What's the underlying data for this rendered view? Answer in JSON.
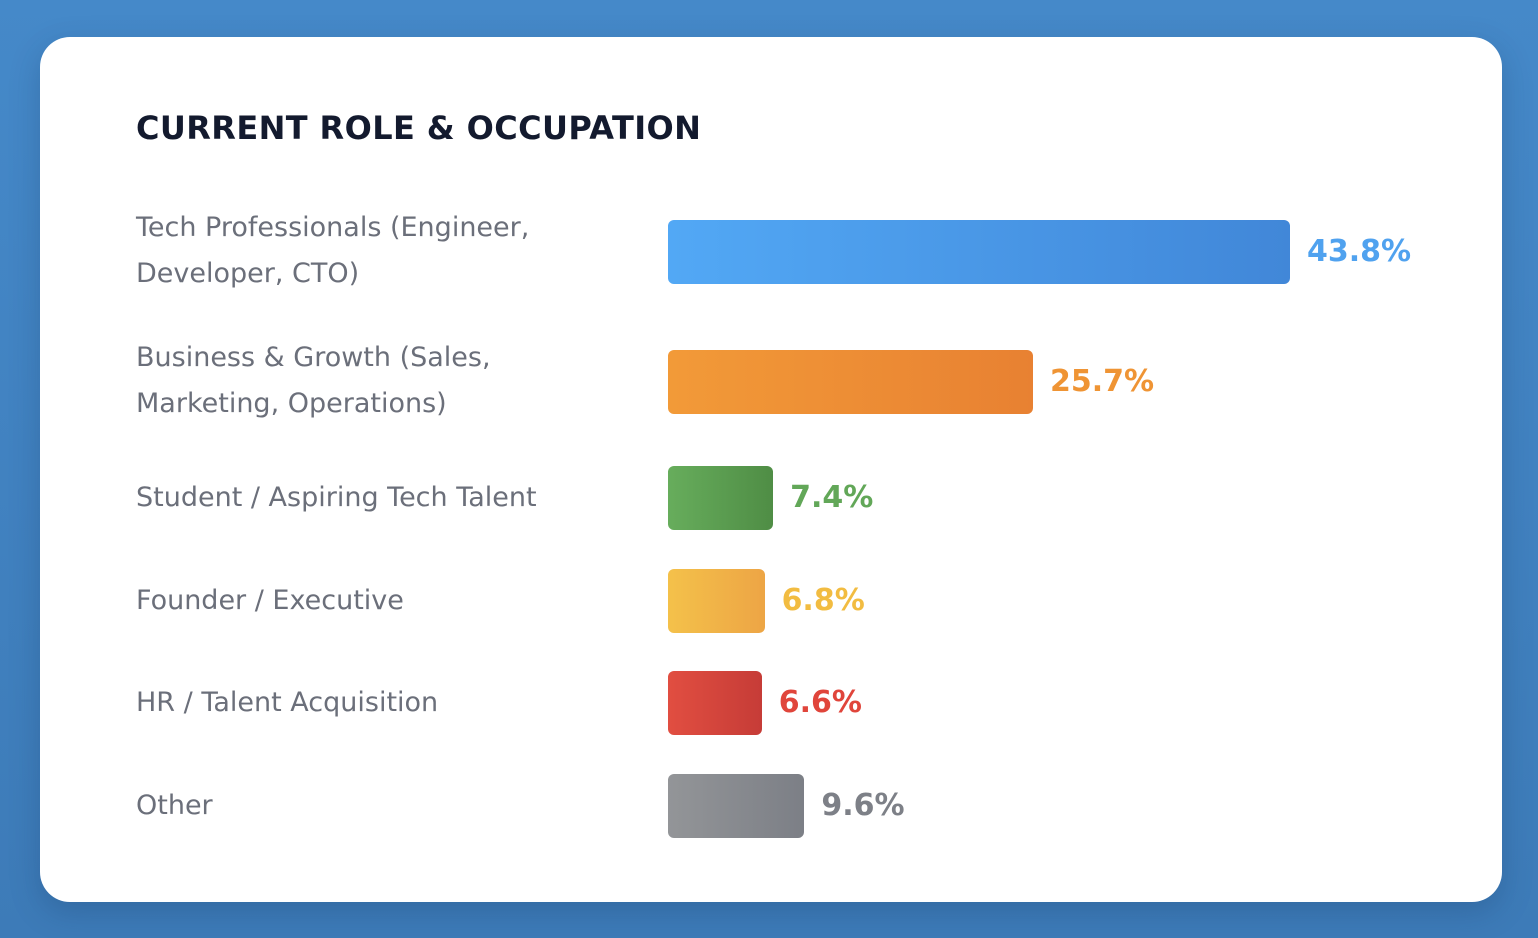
{
  "chart_data": {
    "type": "bar",
    "orientation": "horizontal",
    "title": "CURRENT ROLE & OCCUPATION",
    "categories": [
      "Tech Professionals (Engineer, Developer, CTO)",
      "Business & Growth (Sales, Marketing, Operations)",
      "Student / Aspiring Tech Talent",
      "Founder / Executive",
      "HR / Talent Acquisition",
      "Other"
    ],
    "values": [
      43.8,
      25.7,
      7.4,
      6.8,
      6.6,
      9.6
    ],
    "value_labels": [
      "43.8%",
      "25.7%",
      "7.4%",
      "6.8%",
      "6.6%",
      "9.6%"
    ],
    "unit": "%",
    "colors": [
      [
        "#52a8f5",
        "#4187d8"
      ],
      [
        "#f29a38",
        "#e88132"
      ],
      [
        "#67ad5c",
        "#4f8d45"
      ],
      [
        "#f4c14a",
        "#eda545"
      ],
      [
        "#e14e41",
        "#c63c37"
      ],
      [
        "#939598",
        "#7c7f86"
      ]
    ],
    "label_colors": [
      "#50a2ef",
      "#ef9434",
      "#62a758",
      "#f2bc41",
      "#e0453b",
      "#7d8087"
    ],
    "grid": false,
    "legend": "none"
  }
}
